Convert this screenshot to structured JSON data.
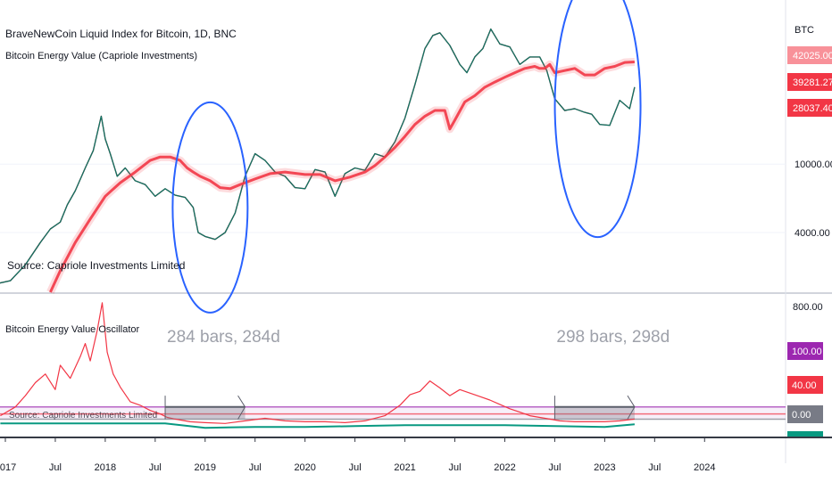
{
  "chart_data": [
    {
      "type": "line",
      "panel": "price",
      "title": "BraveNewCoin Liquid Index for Bitcoin, 1D, BNC",
      "subtitle": "Bitcoin Energy Value (Capriole Investments)",
      "source_note": "Source: Capriole Investments Limited",
      "y_axis_unit": "BTC",
      "y_scale": "log",
      "ylim": [
        1800,
        90000
      ],
      "y_ticks": [
        "4000.00",
        "10000.00"
      ],
      "price_labels": [
        {
          "text": "42025.00",
          "value": 42025,
          "color": "#f23645"
        },
        {
          "text": "39281.27",
          "value": 39281.27,
          "color": "#f23645"
        },
        {
          "text": "28037.40",
          "value": 28037.4,
          "color": "#f23645"
        }
      ],
      "series": [
        {
          "kind": "price",
          "color": "#089981",
          "x": [
            2016.88,
            2017.05,
            2017.2,
            2017.35,
            2017.45,
            2017.55,
            2017.62,
            2017.7,
            2017.8,
            2017.88,
            2017.96,
            2018.0,
            2018.05,
            2018.12,
            2018.2,
            2018.3,
            2018.4,
            2018.5,
            2018.6,
            2018.7,
            2018.8,
            2018.88,
            2018.93,
            2019.0,
            2019.1,
            2019.2,
            2019.3,
            2019.4,
            2019.5,
            2019.6,
            2019.7,
            2019.8,
            2019.9,
            2020.0,
            2020.1,
            2020.2,
            2020.3,
            2020.4,
            2020.5,
            2020.6,
            2020.7,
            2020.8,
            2020.9,
            2021.0,
            2021.1,
            2021.2,
            2021.28,
            2021.35,
            2021.45,
            2021.55,
            2021.62,
            2021.7,
            2021.78,
            2021.86,
            2021.95,
            2022.05,
            2022.15,
            2022.25,
            2022.35,
            2022.42,
            2022.5,
            2022.6,
            2022.7,
            2022.8,
            2022.87,
            2022.95,
            2023.05,
            2023.15,
            2023.25,
            2023.3
          ],
          "y": [
            2000,
            2100,
            2600,
            3500,
            4200,
            4600,
            5800,
            7000,
            9500,
            12000,
            19000,
            14000,
            11500,
            8500,
            9500,
            8000,
            7600,
            6500,
            7200,
            6600,
            6400,
            5600,
            4000,
            3800,
            3650,
            4000,
            5200,
            8500,
            11500,
            10500,
            9000,
            8500,
            7300,
            7200,
            9300,
            9000,
            6500,
            8800,
            9500,
            9200,
            11500,
            11000,
            13500,
            18500,
            29000,
            47000,
            56000,
            58000,
            49000,
            38000,
            34000,
            42000,
            47000,
            61000,
            50000,
            48000,
            38000,
            42000,
            42000,
            35000,
            24000,
            20500,
            21000,
            20000,
            19500,
            17000,
            16800,
            23500,
            21000,
            28037
          ]
        },
        {
          "kind": "energy_value",
          "color": "#f23645",
          "x": [
            2017.45,
            2017.55,
            2017.7,
            2017.85,
            2018.0,
            2018.15,
            2018.3,
            2018.45,
            2018.55,
            2018.65,
            2018.75,
            2018.82,
            2018.88,
            2018.95,
            2019.05,
            2019.15,
            2019.25,
            2019.35,
            2019.5,
            2019.65,
            2019.8,
            2020.0,
            2020.15,
            2020.3,
            2020.45,
            2020.6,
            2020.7,
            2020.8,
            2020.9,
            2021.0,
            2021.1,
            2021.2,
            2021.3,
            2021.4,
            2021.45,
            2021.5,
            2021.6,
            2021.7,
            2021.8,
            2021.9,
            2022.0,
            2022.1,
            2022.2,
            2022.3,
            2022.35,
            2022.4,
            2022.45,
            2022.5,
            2022.6,
            2022.7,
            2022.8,
            2022.9,
            2023.0,
            2023.1,
            2023.2,
            2023.3
          ],
          "y": [
            1800,
            2400,
            3500,
            4800,
            6500,
            7800,
            9000,
            10500,
            11000,
            11000,
            10500,
            9500,
            9000,
            8500,
            8000,
            7300,
            7200,
            7600,
            8200,
            8800,
            9000,
            8700,
            8700,
            8000,
            8400,
            9000,
            9800,
            11000,
            12500,
            14500,
            17000,
            19000,
            20500,
            20500,
            16000,
            18000,
            23000,
            25000,
            28000,
            30000,
            32000,
            34000,
            36000,
            37000,
            36000,
            36000,
            38000,
            34000,
            35000,
            36000,
            33000,
            33000,
            36000,
            37000,
            39000,
            39281
          ]
        }
      ],
      "annotations": [
        {
          "shape": "ellipse",
          "color": "#2962ff",
          "x_center": 2019.05,
          "y_center": 5600
        },
        {
          "shape": "ellipse",
          "color": "#2962ff",
          "x_center": 2022.93,
          "y_center": 22000
        }
      ]
    },
    {
      "type": "line",
      "panel": "oscillator",
      "title": "Bitcoin Energy Value Oscillator",
      "ylim": [
        -10,
        150
      ],
      "y_ticks": [
        "800.00"
      ],
      "x_ticks": [
        "2017",
        "Jul",
        "2018",
        "Jul",
        "2019",
        "Jul",
        "2020",
        "Jul",
        "2021",
        "Jul",
        "2022",
        "Jul",
        "2023",
        "Jul",
        "2024"
      ],
      "x_tick_positions": [
        2017.0,
        2017.5,
        2018.0,
        2018.5,
        2019.0,
        2019.5,
        2020.0,
        2020.5,
        2021.0,
        2021.5,
        2022.0,
        2022.5,
        2023.0,
        2023.5,
        2024.0
      ],
      "x_range": [
        2017.0,
        2024.65
      ],
      "series": [
        {
          "kind": "oscillator",
          "color": "#f23645",
          "x": [
            2016.95,
            2017.1,
            2017.2,
            2017.3,
            2017.4,
            2017.5,
            2017.55,
            2017.65,
            2017.75,
            2017.8,
            2017.85,
            2017.92,
            2017.97,
            2018.02,
            2018.08,
            2018.15,
            2018.25,
            2018.35,
            2018.45,
            2018.55,
            2018.62,
            2018.7,
            2018.85,
            2019.0,
            2019.2,
            2019.4,
            2019.6,
            2019.8,
            2020.0,
            2020.2,
            2020.4,
            2020.6,
            2020.8,
            2020.95,
            2021.05,
            2021.15,
            2021.25,
            2021.35,
            2021.45,
            2021.55,
            2021.65,
            2021.75,
            2021.85,
            2021.95,
            2022.05,
            2022.15,
            2022.25,
            2022.35,
            2022.45,
            2022.55,
            2022.7,
            2022.85,
            2023.0,
            2023.15,
            2023.3
          ],
          "y": [
            12,
            22,
            35,
            50,
            60,
            42,
            70,
            55,
            80,
            95,
            75,
            110,
            142,
            85,
            60,
            45,
            28,
            24,
            18,
            14,
            10,
            8,
            5,
            4,
            3,
            6,
            9,
            6,
            5,
            5,
            4,
            6,
            12,
            24,
            36,
            40,
            52,
            44,
            35,
            42,
            38,
            34,
            30,
            25,
            20,
            16,
            12,
            10,
            8,
            6,
            5,
            5,
            5,
            6,
            8
          ]
        },
        {
          "kind": "baseline",
          "color": "#089981",
          "x": [
            2016.95,
            2018.6,
            2019.0,
            2019.5,
            2020.0,
            2020.5,
            2021.0,
            2021.5,
            2022.0,
            2022.5,
            2023.0,
            2023.3
          ],
          "y": [
            3,
            3,
            -2,
            -1,
            -1,
            0,
            1,
            1,
            1,
            0,
            -1,
            2
          ]
        }
      ],
      "levels": [
        {
          "label": "100.00",
          "value": 22,
          "color": "#9c27b0"
        },
        {
          "label": "40.00",
          "value": 14,
          "color": "#f23645"
        },
        {
          "label": "0.00",
          "value": 8,
          "color": "#787b86"
        }
      ],
      "measurements": [
        {
          "text": "284 bars, 284d",
          "x_start": 2018.6,
          "x_end": 2019.4
        },
        {
          "text": "298 bars, 298d",
          "x_start": 2022.5,
          "x_end": 2023.3
        }
      ],
      "overlay_text": "Source: Capriole Investments Limited"
    }
  ]
}
